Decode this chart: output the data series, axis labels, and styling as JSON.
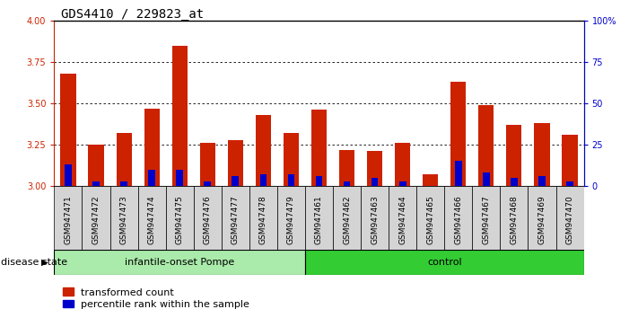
{
  "title": "GDS4410 / 229823_at",
  "samples": [
    "GSM947471",
    "GSM947472",
    "GSM947473",
    "GSM947474",
    "GSM947475",
    "GSM947476",
    "GSM947477",
    "GSM947478",
    "GSM947479",
    "GSM947461",
    "GSM947462",
    "GSM947463",
    "GSM947464",
    "GSM947465",
    "GSM947466",
    "GSM947467",
    "GSM947468",
    "GSM947469",
    "GSM947470"
  ],
  "red_values": [
    3.68,
    3.25,
    3.32,
    3.47,
    3.85,
    3.26,
    3.28,
    3.43,
    3.32,
    3.46,
    3.22,
    3.21,
    3.26,
    3.07,
    3.63,
    3.49,
    3.37,
    3.38,
    3.31
  ],
  "blue_values": [
    13,
    3,
    3,
    10,
    10,
    3,
    6,
    7,
    7,
    6,
    3,
    5,
    3,
    0,
    15,
    8,
    5,
    6,
    3
  ],
  "groups": [
    "infantile-onset Pompe",
    "infantile-onset Pompe",
    "infantile-onset Pompe",
    "infantile-onset Pompe",
    "infantile-onset Pompe",
    "infantile-onset Pompe",
    "infantile-onset Pompe",
    "infantile-onset Pompe",
    "infantile-onset Pompe",
    "control",
    "control",
    "control",
    "control",
    "control",
    "control",
    "control",
    "control",
    "control",
    "control"
  ],
  "baseline": 3.0,
  "ylim": [
    3.0,
    4.0
  ],
  "y2lim": [
    0,
    100
  ],
  "y_ticks": [
    3.0,
    3.25,
    3.5,
    3.75,
    4.0
  ],
  "y2_ticks": [
    0,
    25,
    50,
    75,
    100
  ],
  "red_color": "#CC2200",
  "blue_color": "#0000CC",
  "title_fontsize": 10,
  "tick_fontsize": 7,
  "label_fontsize": 8,
  "legend_fontsize": 8,
  "disease_state_label": "disease state",
  "legend_items": [
    "transformed count",
    "percentile rank within the sample"
  ],
  "group_box_color_pompe": "#aaeaaa",
  "group_box_color_control": "#33cc33",
  "bar_width": 0.55
}
